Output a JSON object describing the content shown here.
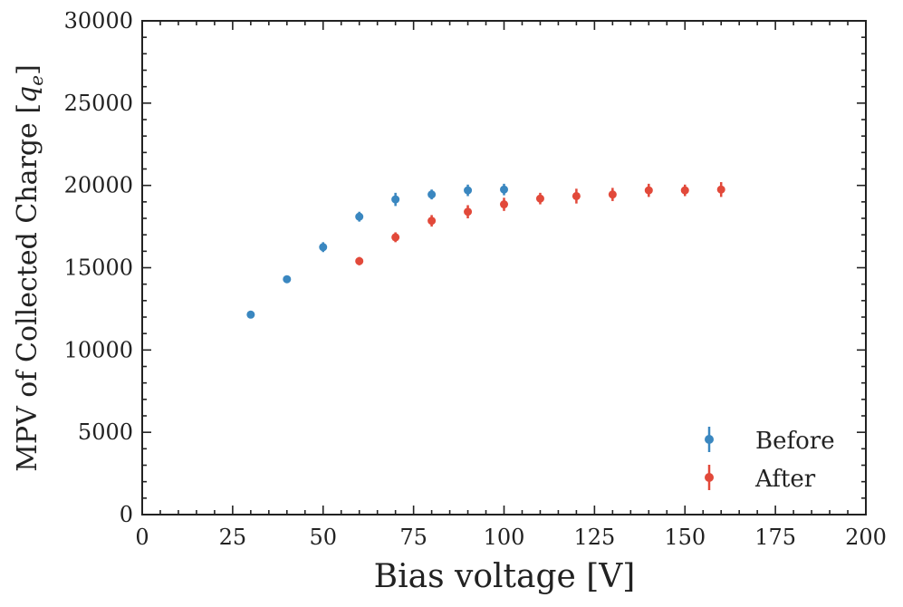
{
  "chart_data": {
    "type": "scatter",
    "title": "",
    "xlabel": "Bias voltage [V]",
    "ylabel": "MPV of Collected Charge [q_e]",
    "ylabel_main": "MPV of Collected Charge [",
    "ylabel_symbol": "q",
    "ylabel_subscript": "e",
    "ylabel_close": "]",
    "xlim": [
      0,
      200
    ],
    "ylim": [
      0,
      30000
    ],
    "xticks": [
      0,
      25,
      50,
      75,
      100,
      125,
      150,
      175,
      200
    ],
    "yticks": [
      0,
      5000,
      10000,
      15000,
      20000,
      25000,
      30000
    ],
    "grid": false,
    "legend_position": "bottom-right",
    "series": [
      {
        "name": "Before",
        "color": "#3a87c0",
        "x": [
          30,
          40,
          50,
          60,
          70,
          80,
          90,
          100
        ],
        "y": [
          12150,
          14300,
          16250,
          18100,
          19150,
          19450,
          19700,
          19750
        ],
        "yerr": [
          150,
          200,
          300,
          300,
          400,
          300,
          350,
          350
        ]
      },
      {
        "name": "After",
        "color": "#e2493a",
        "x": [
          60,
          70,
          80,
          90,
          100,
          110,
          120,
          130,
          140,
          150,
          160
        ],
        "y": [
          15400,
          16850,
          17850,
          18400,
          18850,
          19200,
          19350,
          19450,
          19700,
          19700,
          19750
        ],
        "yerr": [
          250,
          300,
          350,
          400,
          400,
          350,
          450,
          400,
          400,
          350,
          450
        ]
      }
    ]
  }
}
